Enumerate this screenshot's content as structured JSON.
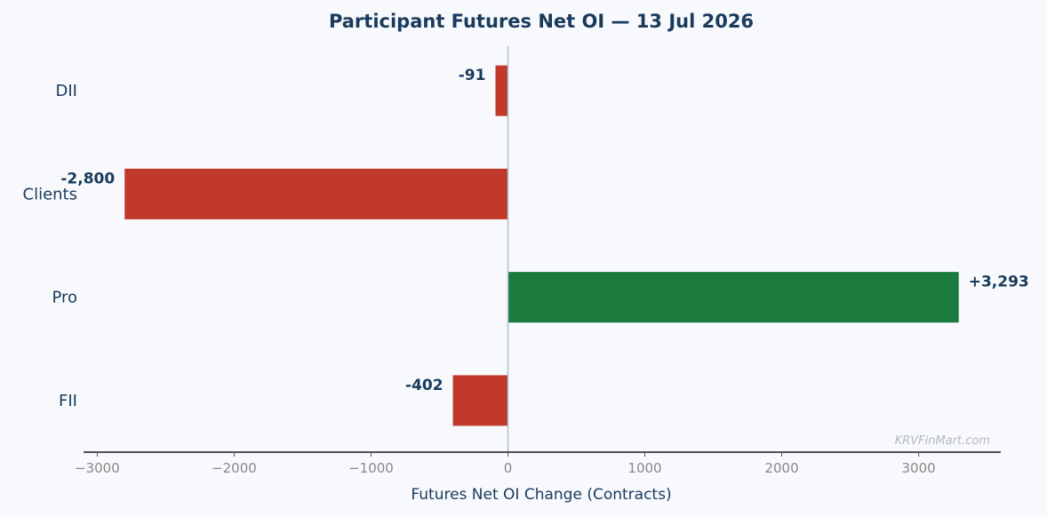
{
  "chart_data": {
    "type": "bar",
    "orientation": "horizontal",
    "title": "Participant Futures Net OI — 13 Jul 2026",
    "xlabel": "Futures Net OI Change (Contracts)",
    "ylabel": "",
    "categories": [
      "DII",
      "Clients",
      "Pro",
      "FII"
    ],
    "values": [
      -91,
      -2800,
      3293,
      -402
    ],
    "value_labels": [
      "-91",
      "-2,800",
      "+3,293",
      "-402"
    ],
    "xlim": [
      -3100,
      3600
    ],
    "xticks": [
      -3000,
      -2000,
      -1000,
      0,
      1000,
      2000,
      3000
    ],
    "xtick_labels": [
      "−3000",
      "−2000",
      "−1000",
      "0",
      "1000",
      "2000",
      "3000"
    ],
    "grid": false,
    "colors": {
      "positive": "#1b7a3e",
      "negative": "#c0392b",
      "text": "#1a3a5c",
      "zero_line": "#b0bccb"
    },
    "watermark": "KRVFinMart.com"
  }
}
